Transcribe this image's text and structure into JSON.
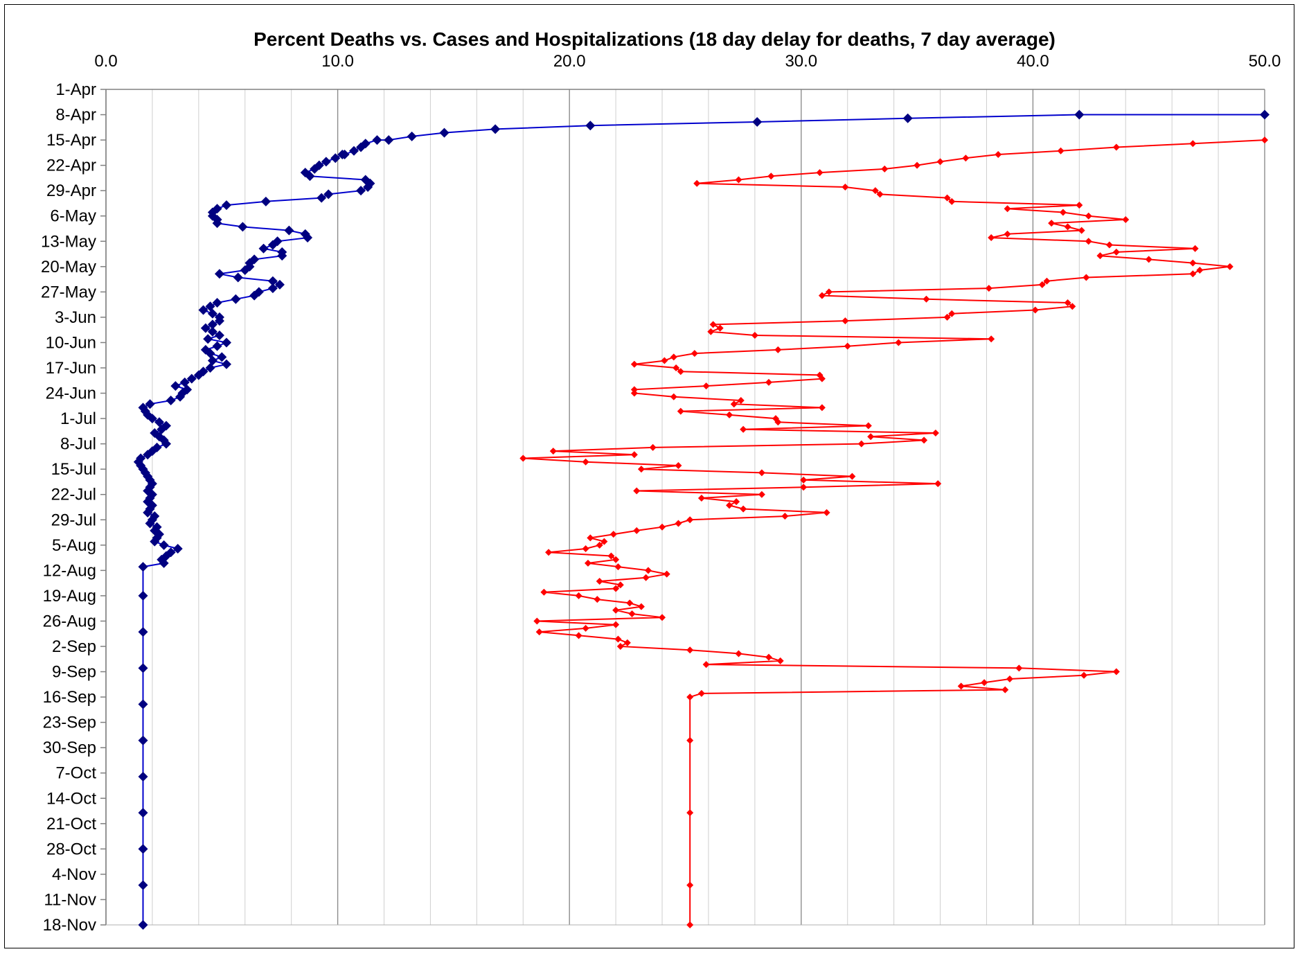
{
  "chart_data": {
    "type": "line",
    "title": "Percent Deaths vs. Cases and Hospitalizations (18 day delay for deaths, 7 day average)",
    "orientation": "values on horizontal axis (top), dates on vertical axis",
    "xlim": [
      0,
      50
    ],
    "x_ticks": [
      "0.0",
      "10.0",
      "20.0",
      "30.0",
      "40.0",
      "50.0"
    ],
    "x_minor_step": 2,
    "y_tick_labels": [
      "1-Apr",
      "8-Apr",
      "15-Apr",
      "22-Apr",
      "29-Apr",
      "6-May",
      "13-May",
      "20-May",
      "27-May",
      "3-Jun",
      "10-Jun",
      "17-Jun",
      "24-Jun",
      "1-Jul",
      "8-Jul",
      "15-Jul",
      "22-Jul",
      "29-Jul",
      "5-Aug",
      "12-Aug",
      "19-Aug",
      "26-Aug",
      "2-Sep",
      "9-Sep",
      "16-Sep",
      "23-Sep",
      "30-Sep",
      "7-Oct",
      "14-Oct",
      "21-Oct",
      "28-Oct",
      "4-Nov",
      "11-Nov",
      "18-Nov"
    ],
    "ylim_days": [
      0,
      231
    ],
    "grid": "vertical major and minor gridlines",
    "legend": "none",
    "series": [
      {
        "color": "#0000cc",
        "marker_color": "#000080",
        "points": [
          [
            50.0,
            7
          ],
          [
            42.0,
            7
          ],
          [
            34.6,
            8
          ],
          [
            28.1,
            9
          ],
          [
            20.9,
            10
          ],
          [
            16.8,
            11
          ],
          [
            14.6,
            12
          ],
          [
            13.2,
            13
          ],
          [
            12.2,
            14
          ],
          [
            11.7,
            14
          ],
          [
            11.2,
            15
          ],
          [
            11.0,
            16
          ],
          [
            10.7,
            17
          ],
          [
            10.3,
            18
          ],
          [
            10.2,
            18
          ],
          [
            9.9,
            19
          ],
          [
            9.5,
            20
          ],
          [
            9.2,
            21
          ],
          [
            9.0,
            22
          ],
          [
            8.6,
            23
          ],
          [
            8.8,
            24
          ],
          [
            11.2,
            25
          ],
          [
            11.4,
            26
          ],
          [
            11.3,
            27
          ],
          [
            11.0,
            28
          ],
          [
            9.6,
            29
          ],
          [
            9.3,
            30
          ],
          [
            6.9,
            31
          ],
          [
            5.2,
            32
          ],
          [
            4.8,
            33
          ],
          [
            4.6,
            34
          ],
          [
            4.6,
            35
          ],
          [
            4.8,
            36
          ],
          [
            4.8,
            37
          ],
          [
            5.9,
            38
          ],
          [
            7.9,
            39
          ],
          [
            8.6,
            40
          ],
          [
            8.7,
            41
          ],
          [
            7.4,
            42
          ],
          [
            7.2,
            43
          ],
          [
            6.8,
            44
          ],
          [
            7.6,
            45
          ],
          [
            7.6,
            46
          ],
          [
            6.4,
            47
          ],
          [
            6.2,
            48
          ],
          [
            6.2,
            49
          ],
          [
            6.0,
            50
          ],
          [
            4.9,
            51
          ],
          [
            5.7,
            52
          ],
          [
            7.2,
            53
          ],
          [
            7.5,
            54
          ],
          [
            7.2,
            55
          ],
          [
            6.6,
            56
          ],
          [
            6.4,
            57
          ],
          [
            5.6,
            58
          ],
          [
            4.8,
            59
          ],
          [
            4.5,
            60
          ],
          [
            4.2,
            61
          ],
          [
            4.6,
            62
          ],
          [
            4.9,
            63
          ],
          [
            4.9,
            64
          ],
          [
            4.6,
            65
          ],
          [
            4.3,
            66
          ],
          [
            4.6,
            67
          ],
          [
            4.9,
            68
          ],
          [
            4.4,
            69
          ],
          [
            5.2,
            70
          ],
          [
            4.8,
            71
          ],
          [
            4.3,
            72
          ],
          [
            4.5,
            73
          ],
          [
            5.0,
            74
          ],
          [
            4.6,
            75
          ],
          [
            5.2,
            76
          ],
          [
            4.5,
            77
          ],
          [
            4.2,
            78
          ],
          [
            4.0,
            79
          ],
          [
            3.7,
            80
          ],
          [
            3.4,
            81
          ],
          [
            3.0,
            82
          ],
          [
            3.5,
            83
          ],
          [
            3.3,
            84
          ],
          [
            3.2,
            85
          ],
          [
            2.8,
            86
          ],
          [
            1.9,
            87
          ],
          [
            1.6,
            88
          ],
          [
            1.7,
            89
          ],
          [
            1.8,
            90
          ],
          [
            2.0,
            91
          ],
          [
            2.3,
            92
          ],
          [
            2.6,
            93
          ],
          [
            2.4,
            94
          ],
          [
            2.1,
            95
          ],
          [
            2.3,
            96
          ],
          [
            2.5,
            97
          ],
          [
            2.6,
            98
          ],
          [
            2.2,
            99
          ],
          [
            2.0,
            100
          ],
          [
            1.8,
            101
          ],
          [
            1.5,
            102
          ],
          [
            1.4,
            103
          ],
          [
            1.5,
            104
          ],
          [
            1.6,
            105
          ],
          [
            1.7,
            106
          ],
          [
            1.8,
            107
          ],
          [
            1.9,
            108
          ],
          [
            2.0,
            109
          ],
          [
            1.9,
            110
          ],
          [
            1.8,
            111
          ],
          [
            2.0,
            112
          ],
          [
            1.9,
            113
          ],
          [
            1.8,
            114
          ],
          [
            2.0,
            115
          ],
          [
            1.9,
            116
          ],
          [
            1.8,
            117
          ],
          [
            2.1,
            118
          ],
          [
            2.0,
            119
          ],
          [
            1.9,
            120
          ],
          [
            2.2,
            121
          ],
          [
            2.1,
            122
          ],
          [
            2.3,
            123
          ],
          [
            2.2,
            124
          ],
          [
            2.1,
            125
          ],
          [
            2.5,
            126
          ],
          [
            3.1,
            127
          ],
          [
            2.8,
            128
          ],
          [
            2.6,
            129
          ],
          [
            2.4,
            130
          ],
          [
            2.5,
            131
          ],
          [
            1.6,
            132
          ],
          [
            1.6,
            140
          ],
          [
            1.6,
            150
          ],
          [
            1.6,
            160
          ],
          [
            1.6,
            170
          ],
          [
            1.6,
            180
          ],
          [
            1.6,
            190
          ],
          [
            1.6,
            200
          ],
          [
            1.6,
            210
          ],
          [
            1.6,
            220
          ],
          [
            1.6,
            231
          ]
        ]
      },
      {
        "color": "#ff0000",
        "marker_color": "#ff0000",
        "points": [
          [
            50.0,
            14
          ],
          [
            46.9,
            15
          ],
          [
            43.6,
            16
          ],
          [
            41.2,
            17
          ],
          [
            38.5,
            18
          ],
          [
            37.1,
            19
          ],
          [
            36.0,
            20
          ],
          [
            35.0,
            21
          ],
          [
            33.6,
            22
          ],
          [
            30.8,
            23
          ],
          [
            28.7,
            24
          ],
          [
            27.3,
            25
          ],
          [
            25.5,
            26
          ],
          [
            31.9,
            27
          ],
          [
            33.2,
            28
          ],
          [
            33.4,
            29
          ],
          [
            36.3,
            30
          ],
          [
            36.5,
            31
          ],
          [
            42.0,
            32
          ],
          [
            38.9,
            33
          ],
          [
            41.3,
            34
          ],
          [
            42.4,
            35
          ],
          [
            44.0,
            36
          ],
          [
            40.8,
            37
          ],
          [
            41.5,
            38
          ],
          [
            42.1,
            39
          ],
          [
            38.9,
            40
          ],
          [
            38.2,
            41
          ],
          [
            42.4,
            42
          ],
          [
            43.3,
            43
          ],
          [
            47.0,
            44
          ],
          [
            43.6,
            45
          ],
          [
            42.9,
            46
          ],
          [
            45.0,
            47
          ],
          [
            46.9,
            48
          ],
          [
            48.5,
            49
          ],
          [
            47.2,
            50
          ],
          [
            46.9,
            51
          ],
          [
            42.3,
            52
          ],
          [
            40.6,
            53
          ],
          [
            40.4,
            54
          ],
          [
            38.1,
            55
          ],
          [
            31.2,
            56
          ],
          [
            30.9,
            57
          ],
          [
            35.4,
            58
          ],
          [
            41.5,
            59
          ],
          [
            41.7,
            60
          ],
          [
            40.1,
            61
          ],
          [
            36.5,
            62
          ],
          [
            36.3,
            63
          ],
          [
            31.9,
            64
          ],
          [
            26.2,
            65
          ],
          [
            26.5,
            66
          ],
          [
            26.1,
            67
          ],
          [
            28.0,
            68
          ],
          [
            38.2,
            69
          ],
          [
            34.2,
            70
          ],
          [
            32.0,
            71
          ],
          [
            29.0,
            72
          ],
          [
            25.4,
            73
          ],
          [
            24.5,
            74
          ],
          [
            24.1,
            75
          ],
          [
            22.8,
            76
          ],
          [
            24.6,
            77
          ],
          [
            24.8,
            78
          ],
          [
            30.8,
            79
          ],
          [
            30.9,
            80
          ],
          [
            28.6,
            81
          ],
          [
            25.9,
            82
          ],
          [
            22.8,
            83
          ],
          [
            22.8,
            84
          ],
          [
            24.5,
            85
          ],
          [
            27.4,
            86
          ],
          [
            27.1,
            87
          ],
          [
            30.9,
            88
          ],
          [
            24.8,
            89
          ],
          [
            26.9,
            90
          ],
          [
            28.9,
            91
          ],
          [
            29.0,
            92
          ],
          [
            32.9,
            93
          ],
          [
            27.5,
            94
          ],
          [
            35.8,
            95
          ],
          [
            33.0,
            96
          ],
          [
            35.3,
            97
          ],
          [
            32.6,
            98
          ],
          [
            23.6,
            99
          ],
          [
            19.3,
            100
          ],
          [
            22.8,
            101
          ],
          [
            18.0,
            102
          ],
          [
            20.7,
            103
          ],
          [
            24.7,
            104
          ],
          [
            23.1,
            105
          ],
          [
            28.3,
            106
          ],
          [
            32.2,
            107
          ],
          [
            30.1,
            108
          ],
          [
            35.9,
            109
          ],
          [
            30.1,
            110
          ],
          [
            22.9,
            111
          ],
          [
            28.3,
            112
          ],
          [
            25.7,
            113
          ],
          [
            27.2,
            114
          ],
          [
            26.9,
            115
          ],
          [
            27.5,
            116
          ],
          [
            31.1,
            117
          ],
          [
            29.3,
            118
          ],
          [
            25.2,
            119
          ],
          [
            24.7,
            120
          ],
          [
            24.0,
            121
          ],
          [
            22.9,
            122
          ],
          [
            21.9,
            123
          ],
          [
            20.9,
            124
          ],
          [
            21.5,
            125
          ],
          [
            21.3,
            126
          ],
          [
            20.7,
            127
          ],
          [
            19.1,
            128
          ],
          [
            21.8,
            129
          ],
          [
            22.0,
            130
          ],
          [
            20.8,
            131
          ],
          [
            22.1,
            132
          ],
          [
            23.4,
            133
          ],
          [
            24.2,
            134
          ],
          [
            23.3,
            135
          ],
          [
            21.3,
            136
          ],
          [
            22.2,
            137
          ],
          [
            22.0,
            138
          ],
          [
            18.9,
            139
          ],
          [
            20.4,
            140
          ],
          [
            21.2,
            141
          ],
          [
            22.6,
            142
          ],
          [
            23.1,
            143
          ],
          [
            22.0,
            144
          ],
          [
            22.7,
            145
          ],
          [
            24.0,
            146
          ],
          [
            18.6,
            147
          ],
          [
            22.0,
            148
          ],
          [
            20.7,
            149
          ],
          [
            18.7,
            150
          ],
          [
            20.4,
            151
          ],
          [
            22.1,
            152
          ],
          [
            22.5,
            153
          ],
          [
            22.2,
            154
          ],
          [
            25.2,
            155
          ],
          [
            27.3,
            156
          ],
          [
            28.6,
            157
          ],
          [
            29.1,
            158
          ],
          [
            25.9,
            159
          ],
          [
            39.4,
            160
          ],
          [
            43.6,
            161
          ],
          [
            42.2,
            162
          ],
          [
            39.0,
            163
          ],
          [
            37.9,
            164
          ],
          [
            36.9,
            165
          ],
          [
            38.8,
            166
          ],
          [
            25.7,
            167
          ],
          [
            25.2,
            168
          ],
          [
            25.2,
            180
          ],
          [
            25.2,
            200
          ],
          [
            25.2,
            220
          ],
          [
            25.2,
            231
          ]
        ]
      }
    ]
  }
}
